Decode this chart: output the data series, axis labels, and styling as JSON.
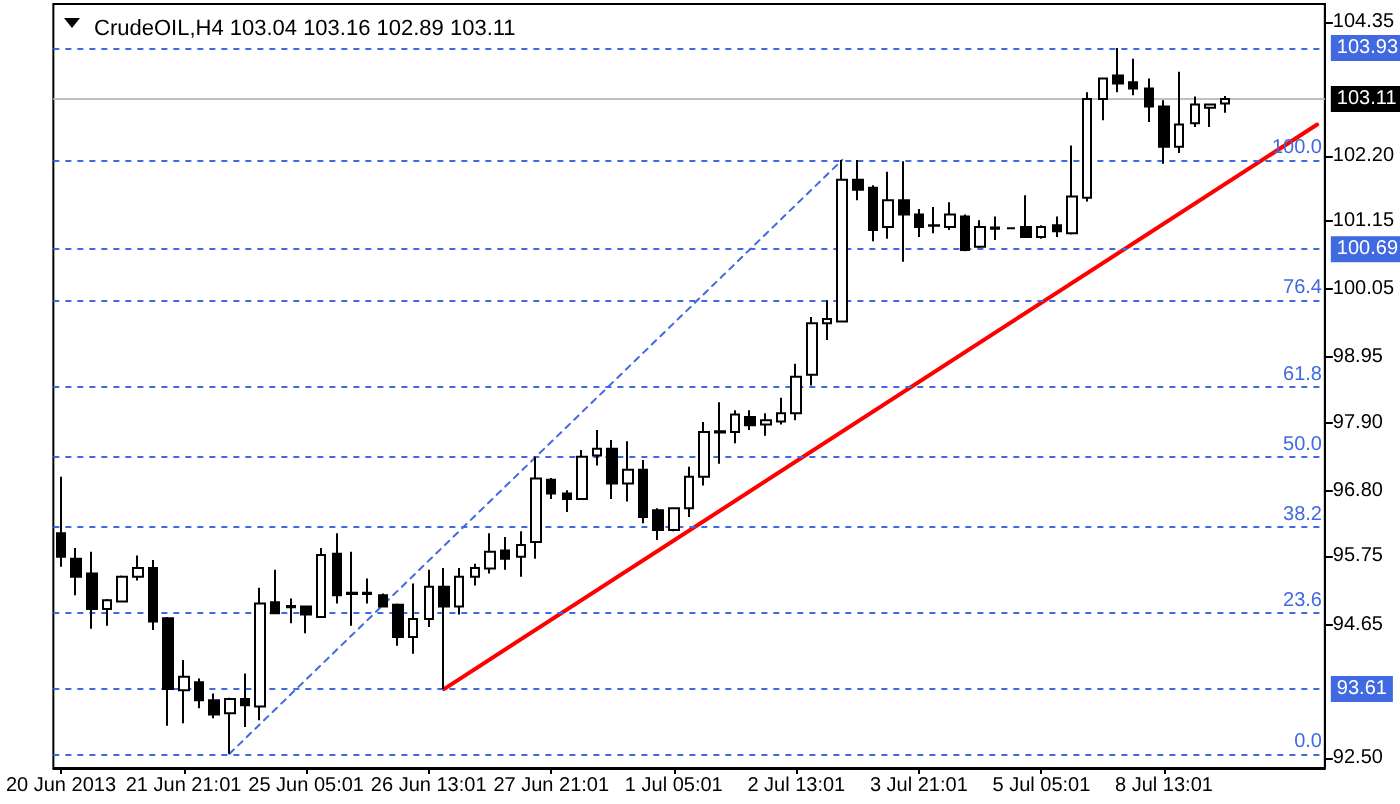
{
  "chart_data": {
    "type": "candlestick",
    "title": "CrudeOIL,H4 103.04 103.16 102.89 103.11",
    "categories": [
      "20 Jun 2013",
      null,
      null,
      null,
      null,
      null,
      null,
      null,
      "21 Jun 21:01",
      null,
      null,
      null,
      null,
      null,
      null,
      null,
      "25 Jun 05:01",
      null,
      null,
      null,
      null,
      null,
      null,
      null,
      "26 Jun 13:01",
      null,
      null,
      null,
      null,
      null,
      null,
      null,
      "27 Jun 21:01",
      null,
      null,
      null,
      null,
      null,
      null,
      null,
      "1 Jul 05:01",
      null,
      null,
      null,
      null,
      null,
      null,
      null,
      "2 Jul 13:01",
      null,
      null,
      null,
      null,
      null,
      null,
      null,
      "3 Jul 21:01",
      null,
      null,
      null,
      null,
      null,
      null,
      null,
      "5 Jul 05:01",
      null,
      null,
      null,
      null,
      null,
      null,
      null,
      "8 Jul 13:01",
      null,
      null,
      null,
      null,
      null,
      null,
      null,
      null,
      null,
      null
    ],
    "ohlc": [
      [
        96.12,
        97.03,
        95.58,
        95.74
      ],
      [
        95.71,
        95.88,
        95.12,
        95.42
      ],
      [
        95.47,
        95.82,
        94.58,
        94.9
      ],
      [
        94.9,
        95.06,
        94.63,
        95.04
      ],
      [
        95.02,
        95.44,
        95.01,
        95.42
      ],
      [
        95.42,
        95.76,
        95.36,
        95.56
      ],
      [
        95.56,
        95.69,
        94.56,
        94.7
      ],
      [
        94.75,
        94.77,
        93.02,
        93.61
      ],
      [
        93.59,
        94.08,
        93.06,
        93.81
      ],
      [
        93.72,
        93.78,
        93.3,
        93.43
      ],
      [
        93.43,
        93.54,
        93.14,
        93.2
      ],
      [
        93.22,
        93.47,
        92.57,
        93.45
      ],
      [
        93.45,
        93.86,
        93.0,
        93.35
      ],
      [
        93.33,
        95.24,
        93.11,
        94.99
      ],
      [
        95.01,
        95.53,
        94.82,
        94.83
      ],
      [
        94.95,
        95.07,
        94.67,
        94.93
      ],
      [
        94.94,
        94.95,
        94.51,
        94.81
      ],
      [
        94.77,
        95.88,
        94.76,
        95.77
      ],
      [
        95.79,
        96.12,
        94.99,
        95.12
      ],
      [
        95.16,
        95.82,
        94.63,
        95.14
      ],
      [
        95.14,
        95.39,
        94.99,
        95.16
      ],
      [
        95.12,
        95.15,
        94.93,
        94.94
      ],
      [
        94.97,
        94.99,
        94.31,
        94.45
      ],
      [
        94.45,
        95.31,
        94.18,
        94.74
      ],
      [
        94.74,
        95.53,
        94.61,
        95.26
      ],
      [
        95.26,
        95.56,
        93.61,
        94.94
      ],
      [
        94.94,
        95.56,
        94.81,
        95.42
      ],
      [
        95.42,
        95.63,
        95.28,
        95.56
      ],
      [
        95.55,
        96.12,
        95.47,
        95.82
      ],
      [
        95.84,
        96.06,
        95.53,
        95.71
      ],
      [
        95.74,
        96.15,
        95.42,
        95.93
      ],
      [
        95.98,
        97.35,
        95.71,
        97.0
      ],
      [
        96.98,
        97.01,
        96.67,
        96.76
      ],
      [
        96.76,
        96.81,
        96.46,
        96.67
      ],
      [
        96.67,
        97.46,
        96.66,
        97.35
      ],
      [
        97.37,
        97.78,
        97.21,
        97.48
      ],
      [
        97.48,
        97.62,
        96.67,
        96.92
      ],
      [
        96.92,
        97.6,
        96.63,
        97.14
      ],
      [
        97.14,
        97.3,
        96.28,
        96.38
      ],
      [
        96.49,
        96.52,
        96.01,
        96.17
      ],
      [
        96.17,
        96.53,
        96.15,
        96.52
      ],
      [
        96.52,
        97.19,
        96.38,
        97.03
      ],
      [
        97.03,
        97.91,
        96.89,
        97.75
      ],
      [
        97.74,
        98.23,
        97.24,
        97.76
      ],
      [
        97.75,
        98.1,
        97.57,
        98.03
      ],
      [
        97.99,
        98.1,
        97.78,
        97.86
      ],
      [
        97.87,
        98.05,
        97.69,
        97.94
      ],
      [
        97.92,
        98.3,
        97.87,
        98.05
      ],
      [
        98.05,
        98.85,
        97.94,
        98.64
      ],
      [
        98.67,
        99.6,
        98.5,
        99.5
      ],
      [
        99.5,
        99.87,
        99.23,
        99.57
      ],
      [
        99.53,
        102.13,
        99.52,
        101.81
      ],
      [
        101.81,
        102.13,
        101.48,
        101.65
      ],
      [
        101.68,
        101.72,
        100.82,
        101.0
      ],
      [
        101.05,
        101.94,
        100.86,
        101.48
      ],
      [
        101.48,
        102.11,
        100.49,
        101.25
      ],
      [
        101.25,
        101.34,
        100.89,
        101.05
      ],
      [
        101.07,
        101.37,
        100.95,
        101.08
      ],
      [
        101.05,
        101.45,
        101.0,
        101.25
      ],
      [
        101.22,
        101.25,
        100.66,
        100.68
      ],
      [
        100.73,
        101.16,
        100.71,
        101.05
      ],
      [
        101.02,
        101.22,
        100.84,
        101.04
      ],
      [
        101.03,
        101.04,
        101.02,
        101.03
      ],
      [
        101.05,
        101.56,
        100.88,
        100.89
      ],
      [
        100.89,
        101.08,
        100.86,
        101.05
      ],
      [
        101.08,
        101.22,
        100.89,
        100.98
      ],
      [
        100.95,
        102.36,
        100.93,
        101.54
      ],
      [
        101.52,
        103.22,
        101.46,
        103.11
      ],
      [
        103.11,
        103.45,
        102.77,
        103.44
      ],
      [
        103.49,
        103.93,
        103.22,
        103.36
      ],
      [
        103.38,
        103.76,
        103.17,
        103.28
      ],
      [
        103.28,
        103.44,
        102.74,
        102.99
      ],
      [
        102.99,
        103.09,
        102.07,
        102.34
      ],
      [
        102.34,
        103.55,
        102.24,
        102.7
      ],
      [
        102.72,
        103.15,
        102.66,
        103.02
      ],
      [
        102.97,
        103.03,
        102.66,
        103.02
      ],
      [
        103.04,
        103.16,
        102.89,
        103.11
      ],
      null,
      null,
      null,
      null,
      null,
      null
    ],
    "series": [
      {
        "type": "line",
        "color": "#ff0000",
        "values": [
          null,
          null,
          null,
          null,
          null,
          null,
          null,
          null,
          null,
          null,
          null,
          null,
          null,
          null,
          null,
          null,
          null,
          null,
          null,
          null,
          null,
          null,
          null,
          null,
          null,
          93.61,
          null,
          null,
          null,
          null,
          null,
          null,
          null,
          null,
          null,
          null,
          null,
          null,
          null,
          null,
          null,
          null,
          null,
          null,
          null,
          null,
          null,
          null,
          null,
          null,
          null,
          null,
          null,
          null,
          null,
          null,
          null,
          null,
          null,
          null,
          null,
          null,
          null,
          null,
          null,
          null,
          null,
          null,
          null,
          null,
          null,
          null,
          null,
          null,
          null,
          null,
          null,
          null,
          null,
          null,
          null,
          null,
          102.7
        ]
      },
      {
        "type": "line",
        "color": "#4169e1",
        "line_style": "dashed",
        "values": [
          null,
          null,
          null,
          null,
          null,
          null,
          null,
          null,
          null,
          null,
          null,
          92.57,
          null,
          null,
          null,
          null,
          null,
          null,
          null,
          null,
          null,
          null,
          null,
          null,
          null,
          null,
          null,
          null,
          null,
          null,
          null,
          null,
          null,
          null,
          null,
          null,
          null,
          null,
          null,
          null,
          null,
          null,
          null,
          null,
          null,
          null,
          null,
          null,
          null,
          null,
          null,
          102.13,
          null,
          null,
          null,
          null,
          null,
          null,
          null,
          null,
          null,
          null,
          null,
          null,
          null,
          null,
          null,
          null,
          null,
          null,
          null,
          null,
          null,
          null,
          null,
          null,
          null,
          null,
          null,
          null,
          null,
          null,
          null
        ]
      }
    ],
    "ylim": [
      92.34,
      104.64
    ],
    "yticks": [
      {
        "value": 92.5,
        "label": "92.50"
      },
      94.65,
      95.75,
      {
        "value": 96.8,
        "label": "96.80"
      },
      {
        "value": 97.9,
        "label": "97.90"
      },
      98.95,
      100.05,
      101.15,
      {
        "value": 102.2,
        "label": "102.20"
      },
      104.35
    ],
    "ref_lines": [
      {
        "axis": "y",
        "value": 103.93,
        "label": "103.93",
        "color": "#4169e1",
        "line_style": "dashed"
      },
      {
        "axis": "y",
        "value": 103.11,
        "label": "103.11",
        "color": "#c0c0c0",
        "line_style": "solid"
      },
      {
        "axis": "y",
        "value": 100.69,
        "label": "100.69",
        "color": "#4169e1",
        "line_style": "dashed"
      },
      {
        "axis": "y",
        "value": 93.61,
        "label": "93.61",
        "color": "#4169e1",
        "line_style": "dashed"
      },
      {
        "axis": "y",
        "value": 92.57,
        "color": "#4169e1",
        "line_style": "dashed"
      },
      {
        "axis": "y",
        "value": 94.83,
        "color": "#4169e1",
        "line_style": "dashed"
      },
      {
        "axis": "y",
        "value": 96.22,
        "color": "#4169e1",
        "line_style": "dashed"
      },
      {
        "axis": "y",
        "value": 97.35,
        "color": "#4169e1",
        "line_style": "dashed"
      },
      {
        "axis": "y",
        "value": 98.48,
        "color": "#4169e1",
        "line_style": "dashed"
      },
      {
        "axis": "y",
        "value": 99.87,
        "color": "#4169e1",
        "line_style": "dashed"
      },
      {
        "axis": "y",
        "value": 102.13,
        "color": "#4169e1",
        "line_style": "dashed"
      }
    ],
    "annotations": [
      {
        "text": "0.0",
        "y": 92.57
      },
      {
        "text": "23.6",
        "y": 94.83
      },
      {
        "text": "38.2",
        "y": 96.22
      },
      {
        "text": "50.0",
        "y": 97.35
      },
      {
        "text": "61.8",
        "y": 98.48
      },
      {
        "text": "76.4",
        "y": 99.87
      },
      {
        "text": "100.0",
        "y": 102.13
      }
    ]
  }
}
